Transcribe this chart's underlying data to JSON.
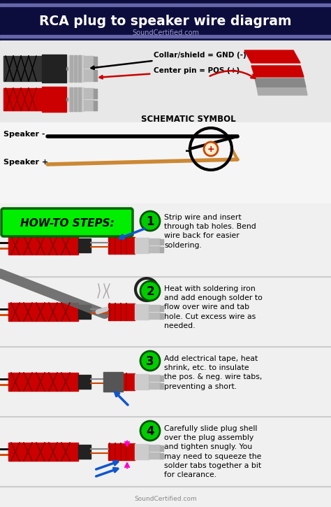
{
  "title": "RCA plug to speaker wire diagram",
  "subtitle": "SoundCertified.com",
  "bg_color": "#f0f0f0",
  "header_bg": "#0d0d3d",
  "header_text_color": "#ffffff",
  "header_accent": "#6666aa",
  "steps": [
    {
      "num": "1",
      "text": "Strip wire and insert\nthrough tab holes. Bend\nwire back for easier\nsoldering."
    },
    {
      "num": "2",
      "text": "Heat with soldering iron\nand add enough solder to\nflow over wire and tab\nhole. Cut excess wire as\nneeded."
    },
    {
      "num": "3",
      "text": "Add electrical tape, heat\nshrink, etc. to insulate\nthe pos. & neg. wire tabs,\npreventing a short."
    },
    {
      "num": "4",
      "text": "Carefully slide plug shell\nover the plug assembly\nand tighten snugly. You\nmay need to squeeze the\nsolder tabs together a bit\nfor clearance."
    }
  ],
  "label1": "Collar/shield = GND (-)",
  "label2": "Center pin = POS (+)",
  "speaker_neg": "Speaker -",
  "speaker_pos": "Speaker +",
  "schematic_label": "SCHEMATIC SYMBOL",
  "howto_label": "HOW-TO STEPS:",
  "red": "#cc0000",
  "bright_red": "#ff0000",
  "green": "#00dd00",
  "black": "#000000",
  "dark_red": "#880000",
  "footer": "SoundCertified.com",
  "section1_bg": "#e8e8e8",
  "section2_bg": "#e8e8e8"
}
